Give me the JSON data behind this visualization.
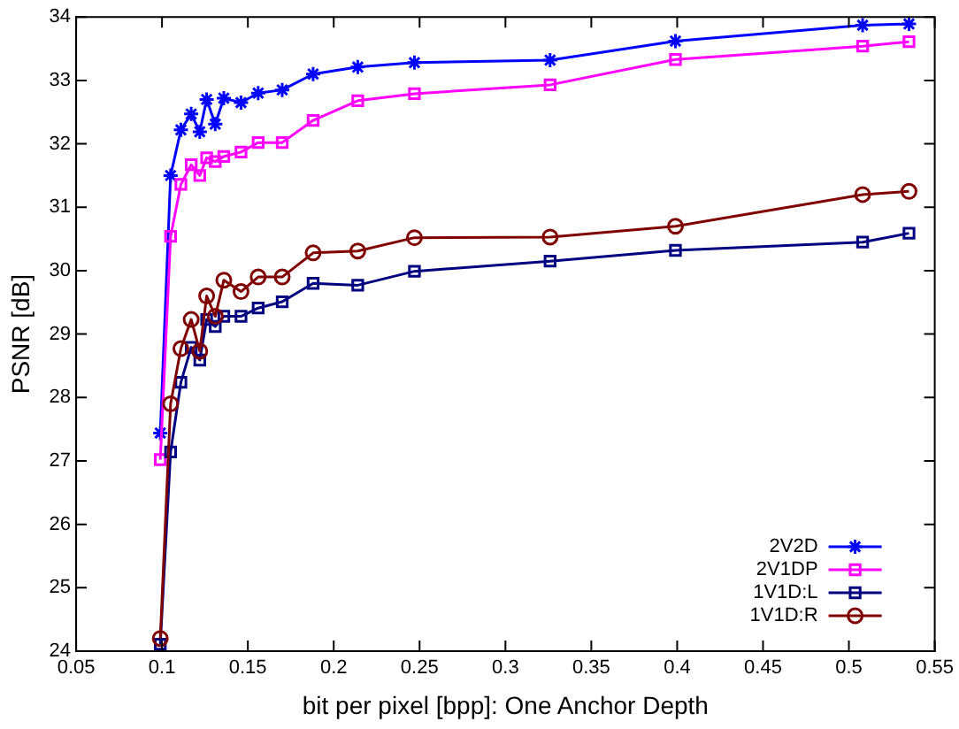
{
  "chart_data": {
    "type": "line",
    "xlabel": "bit per pixel [bpp]: One Anchor Depth",
    "ylabel": "PSNR [dB]",
    "x": [
      0.099,
      0.105,
      0.111,
      0.117,
      0.122,
      0.126,
      0.131,
      0.136,
      0.146,
      0.156,
      0.17,
      0.188,
      0.214,
      0.247,
      0.326,
      0.399,
      0.508,
      0.535
    ],
    "series": [
      {
        "name": "2V2D",
        "color": "#0000ff",
        "marker": "cross",
        "values": [
          27.44,
          31.5,
          32.22,
          32.47,
          32.19,
          32.7,
          32.31,
          32.72,
          32.65,
          32.8,
          32.85,
          33.1,
          33.21,
          33.28,
          33.32,
          33.62,
          33.87,
          33.89
        ]
      },
      {
        "name": "2V1DP",
        "color": "#ff00ff",
        "marker": "square",
        "values": [
          27.02,
          30.54,
          31.36,
          31.67,
          31.5,
          31.78,
          31.72,
          31.8,
          31.87,
          32.02,
          32.02,
          32.37,
          32.68,
          32.79,
          32.93,
          33.33,
          33.54,
          33.61
        ]
      },
      {
        "name": "1V1D:L",
        "color": "#000080",
        "marker": "square",
        "values": [
          24.11,
          27.14,
          28.24,
          28.79,
          28.59,
          29.23,
          29.12,
          29.28,
          29.28,
          29.41,
          29.51,
          29.8,
          29.77,
          29.99,
          30.15,
          30.32,
          30.45,
          30.59
        ]
      },
      {
        "name": "1V1D:R",
        "color": "#800000",
        "marker": "circle",
        "values": [
          24.2,
          27.9,
          28.77,
          29.23,
          28.73,
          29.6,
          29.28,
          29.85,
          29.67,
          29.9,
          29.9,
          30.28,
          30.31,
          30.52,
          30.53,
          30.7,
          31.2,
          31.25
        ]
      }
    ],
    "xlim": [
      0.05,
      0.55
    ],
    "xticks": [
      0.05,
      0.1,
      0.15,
      0.2,
      0.25,
      0.3,
      0.35,
      0.4,
      0.45,
      0.5,
      0.55
    ],
    "ylim": [
      24,
      34
    ],
    "yticks": [
      24,
      25,
      26,
      27,
      28,
      29,
      30,
      31,
      32,
      33,
      34
    ],
    "grid": false,
    "legend": "bottom right",
    "line_style": "solid"
  }
}
